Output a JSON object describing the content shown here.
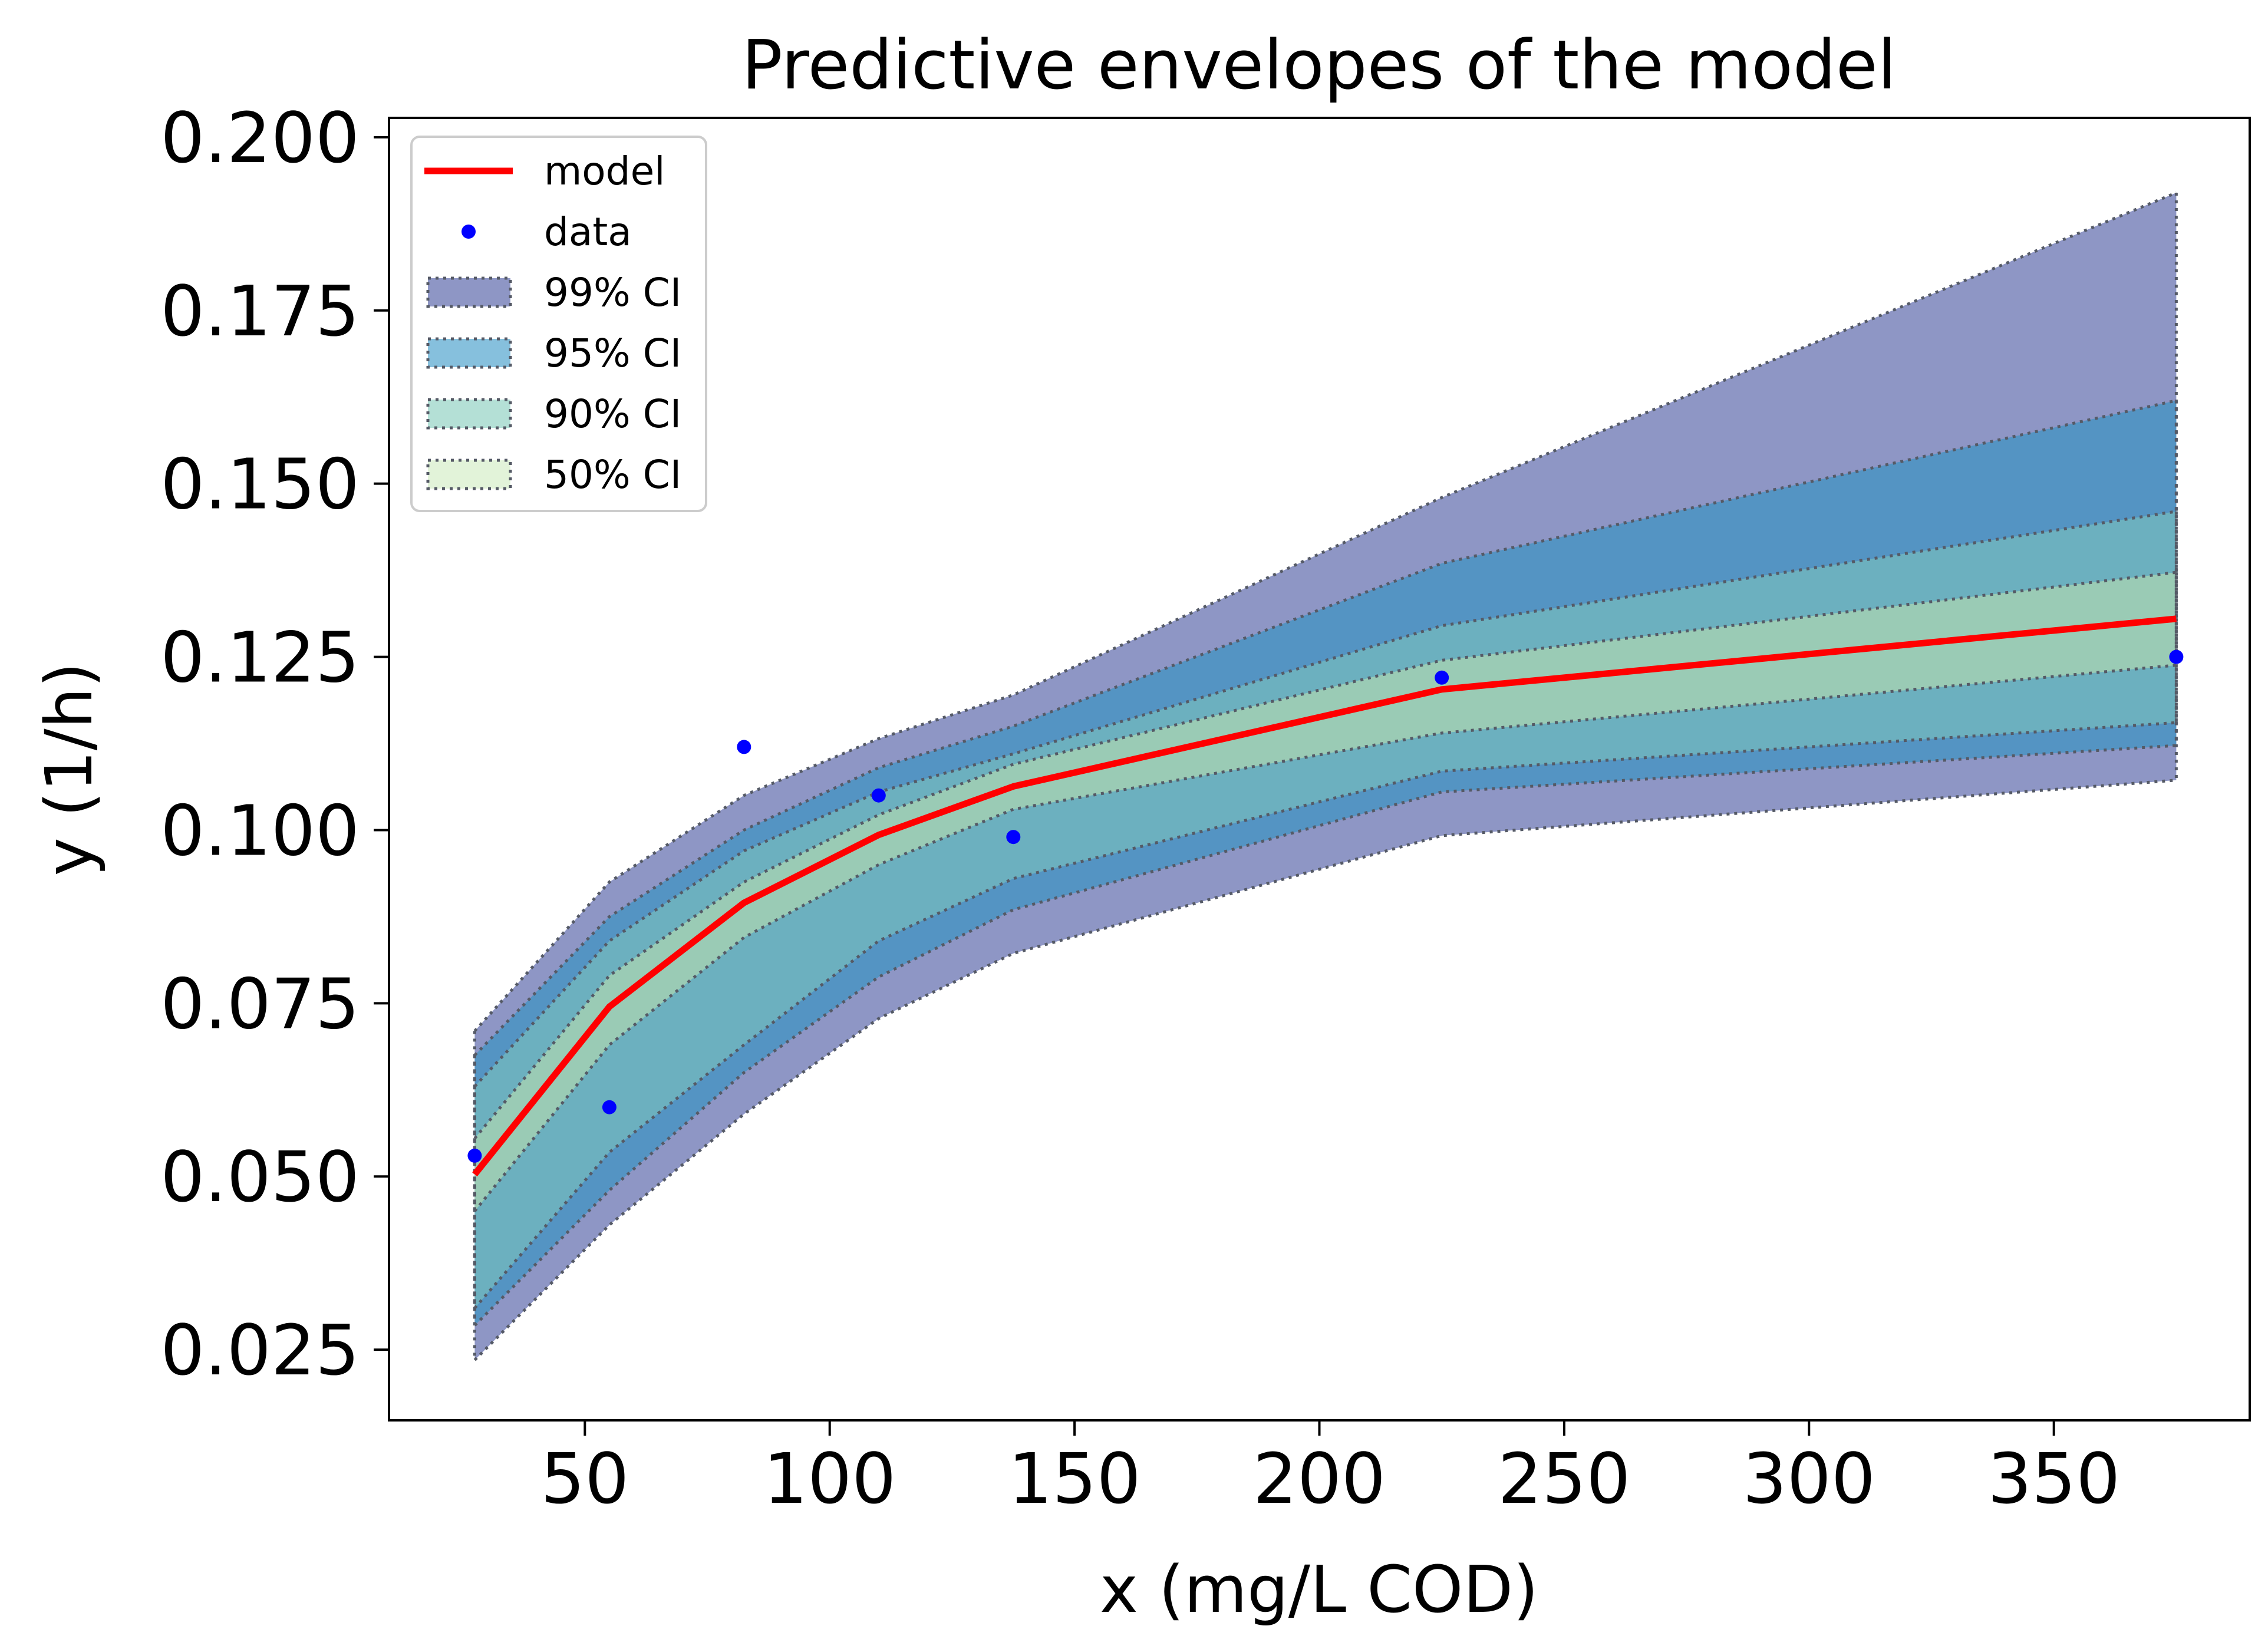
{
  "chart_data": {
    "type": "line",
    "title": "Predictive envelopes of the model",
    "xlabel": "x (mg/L COD)",
    "ylabel": "y (1/h)",
    "xlim": [
      10,
      390
    ],
    "ylim": [
      0.0148,
      0.2028
    ],
    "x_ticks": [
      50,
      100,
      150,
      200,
      250,
      300,
      350
    ],
    "y_ticks": [
      0.025,
      0.05,
      0.075,
      0.1,
      0.125,
      0.15,
      0.175,
      0.2
    ],
    "x_tick_labels": [
      "50",
      "100",
      "150",
      "200",
      "250",
      "300",
      "350"
    ],
    "y_tick_labels": [
      "0.025",
      "0.050",
      "0.075",
      "0.100",
      "0.125",
      "0.150",
      "0.175",
      "0.200"
    ],
    "grid": false,
    "legend_position": "top-left",
    "x": [
      27.5,
      55,
      82.5,
      110,
      137.5,
      225,
      375
    ],
    "series": [
      {
        "name": "model",
        "kind": "line",
        "color": "#ff0000",
        "values": [
          0.0503,
          0.0745,
          0.0895,
          0.0993,
          0.1063,
          0.1203,
          0.1305
        ]
      },
      {
        "name": "data",
        "kind": "scatter",
        "color": "#0000ff",
        "points": [
          [
            27.5,
            0.053
          ],
          [
            55,
            0.06
          ],
          [
            82.5,
            0.112
          ],
          [
            110,
            0.105
          ],
          [
            137.5,
            0.099
          ],
          [
            225,
            0.122
          ],
          [
            375,
            0.125
          ]
        ]
      }
    ],
    "bands": [
      {
        "name": "99% CI",
        "color": "#8e96c5",
        "upper": [
          0.071,
          0.0925,
          0.105,
          0.1132,
          0.1195,
          0.148,
          0.192
        ],
        "lower": [
          0.0235,
          0.043,
          0.059,
          0.0728,
          0.0822,
          0.0992,
          0.1072
        ]
      },
      {
        "name": "95% CI",
        "color": "#5494c3",
        "upper": [
          0.0675,
          0.0875,
          0.1,
          0.109,
          0.115,
          0.1385,
          0.162
        ],
        "lower": [
          0.0285,
          0.048,
          0.065,
          0.0788,
          0.0885,
          0.1055,
          0.1122
        ]
      },
      {
        "name": "90% CI",
        "color": "#6cb0bf",
        "upper": [
          0.063,
          0.084,
          0.097,
          0.1055,
          0.111,
          0.1295,
          0.146
        ],
        "lower": [
          0.031,
          0.0535,
          0.069,
          0.084,
          0.093,
          0.1085,
          0.1155
        ]
      },
      {
        "name": "50% CI",
        "color": "#9acbb5",
        "upper": [
          0.0555,
          0.079,
          0.0925,
          0.1022,
          0.1095,
          0.1245,
          0.1372
        ],
        "lower": [
          0.045,
          0.069,
          0.0845,
          0.095,
          0.103,
          0.114,
          0.1238
        ]
      }
    ],
    "legend": [
      {
        "label": "model",
        "kind": "line",
        "color": "#ff0000"
      },
      {
        "label": "data",
        "kind": "marker",
        "color": "#0000ff"
      },
      {
        "label": "99% CI",
        "kind": "patch",
        "color": "#8e96c5"
      },
      {
        "label": "95% CI",
        "kind": "patch",
        "color": "#86c0dd"
      },
      {
        "label": "90% CI",
        "kind": "patch",
        "color": "#b4e0d6"
      },
      {
        "label": "50% CI",
        "kind": "patch",
        "color": "#e2f3d9"
      }
    ]
  }
}
